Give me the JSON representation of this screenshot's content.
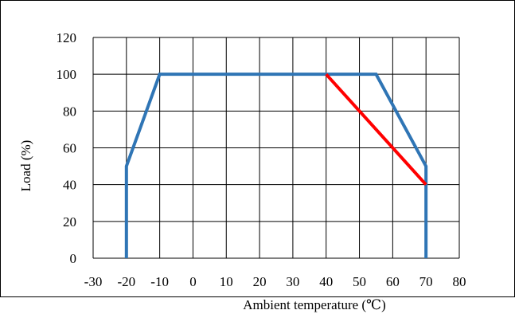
{
  "chart_data": {
    "type": "line",
    "title": "",
    "xlabel": "Ambient temperature (℃)",
    "ylabel": "Load (%)",
    "xlim": [
      -30,
      80
    ],
    "ylim": [
      0,
      120
    ],
    "xticks": [
      -30,
      -20,
      -10,
      0,
      10,
      20,
      30,
      40,
      50,
      60,
      70,
      80
    ],
    "yticks": [
      0,
      20,
      40,
      60,
      80,
      100,
      120
    ],
    "grid": true,
    "legend": "none",
    "series": [
      {
        "color": "#2f75b5",
        "x": [
          -20,
          -20,
          -10,
          55,
          70,
          70
        ],
        "y": [
          0,
          50,
          100,
          100,
          50,
          0
        ]
      },
      {
        "color": "#ff0000",
        "x": [
          40,
          70
        ],
        "y": [
          100,
          40
        ]
      }
    ]
  }
}
